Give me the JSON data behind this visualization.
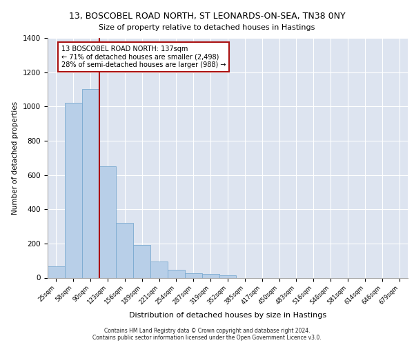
{
  "title_line1": "13, BOSCOBEL ROAD NORTH, ST LEONARDS-ON-SEA, TN38 0NY",
  "title_line2": "Size of property relative to detached houses in Hastings",
  "xlabel": "Distribution of detached houses by size in Hastings",
  "ylabel": "Number of detached properties",
  "categories": [
    "25sqm",
    "58sqm",
    "90sqm",
    "123sqm",
    "156sqm",
    "189sqm",
    "221sqm",
    "254sqm",
    "287sqm",
    "319sqm",
    "352sqm",
    "385sqm",
    "417sqm",
    "450sqm",
    "483sqm",
    "516sqm",
    "548sqm",
    "581sqm",
    "614sqm",
    "646sqm",
    "679sqm"
  ],
  "bar_heights": [
    65,
    1020,
    1100,
    650,
    320,
    190,
    95,
    47,
    28,
    22,
    15,
    0,
    0,
    0,
    0,
    0,
    0,
    0,
    0,
    0,
    0
  ],
  "bar_color": "#b8cfe8",
  "bar_edge_color": "#7aaad0",
  "highlight_color": "#aa1111",
  "annotation_box_text": "13 BOSCOBEL ROAD NORTH: 137sqm\n← 71% of detached houses are smaller (2,498)\n28% of semi-detached houses are larger (988) →",
  "annotation_bg": "#ffffff",
  "annotation_edge_color": "#aa1111",
  "ylim": [
    0,
    1400
  ],
  "yticks": [
    0,
    200,
    400,
    600,
    800,
    1000,
    1200,
    1400
  ],
  "background_color": "#dde4f0",
  "grid_color": "#ffffff",
  "footer": "Contains HM Land Registry data © Crown copyright and database right 2024.\nContains public sector information licensed under the Open Government Licence v3.0.",
  "red_line_x": 2.5
}
